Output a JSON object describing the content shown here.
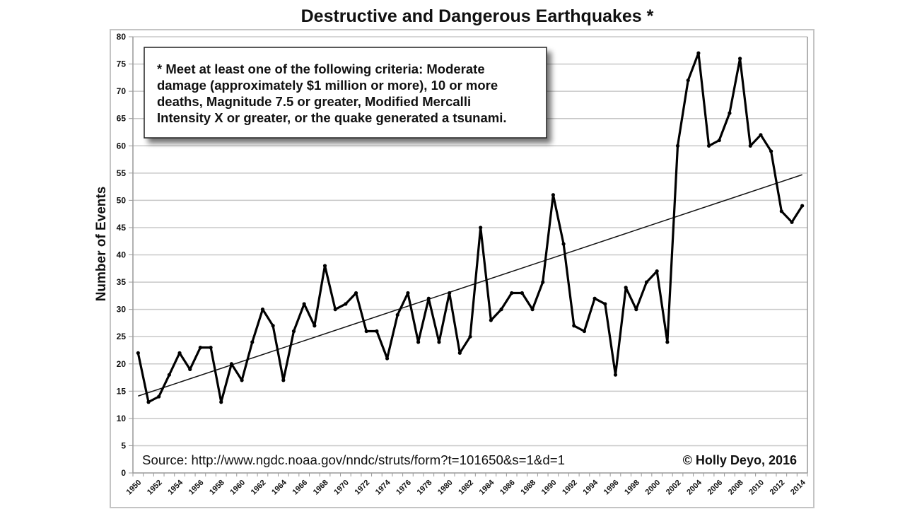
{
  "chart_data": {
    "type": "line",
    "title": "Destructive and Dangerous Earthquakes *",
    "xlabel": "",
    "ylabel": "Number of Events",
    "ylim": [
      0,
      80
    ],
    "yticks": [
      "0",
      "5",
      "10",
      "15",
      "20",
      "25",
      "30",
      "35",
      "40",
      "45",
      "50",
      "55",
      "60",
      "65",
      "70",
      "75",
      "80"
    ],
    "grid": true,
    "x": [
      1950,
      1951,
      1952,
      1953,
      1954,
      1955,
      1956,
      1957,
      1958,
      1959,
      1960,
      1961,
      1962,
      1963,
      1964,
      1965,
      1966,
      1967,
      1968,
      1969,
      1970,
      1971,
      1972,
      1973,
      1974,
      1975,
      1976,
      1977,
      1978,
      1979,
      1980,
      1981,
      1982,
      1983,
      1984,
      1985,
      1986,
      1987,
      1988,
      1989,
      1990,
      1991,
      1992,
      1993,
      1994,
      1995,
      1996,
      1997,
      1998,
      1999,
      2000,
      2001,
      2002,
      2003,
      2004,
      2005,
      2006,
      2007,
      2008,
      2009,
      2010,
      2011,
      2012,
      2013,
      2014
    ],
    "xticks": [
      "1950",
      "1952",
      "1954",
      "1956",
      "1958",
      "1960",
      "1962",
      "1964",
      "1966",
      "1968",
      "1970",
      "1972",
      "1974",
      "1976",
      "1978",
      "1980",
      "1982",
      "1984",
      "1986",
      "1988",
      "1990",
      "1992",
      "1994",
      "1996",
      "1998",
      "2000",
      "2002",
      "2004",
      "2006",
      "2008",
      "2010",
      "2012",
      "2014"
    ],
    "series": [
      {
        "name": "Events",
        "values": [
          22,
          13,
          14,
          18,
          22,
          19,
          23,
          23,
          13,
          20,
          17,
          24,
          30,
          27,
          17,
          26,
          31,
          27,
          38,
          30,
          31,
          33,
          26,
          26,
          21,
          29,
          33,
          24,
          32,
          24,
          33,
          22,
          25,
          45,
          28,
          30,
          33,
          33,
          30,
          35,
          51,
          42,
          27,
          26,
          32,
          31,
          18,
          34,
          30,
          35,
          37,
          24,
          60,
          72,
          77,
          60,
          61,
          66,
          76,
          60,
          62,
          59,
          48,
          46,
          49
        ]
      }
    ],
    "trendline": {
      "type": "linear",
      "start": [
        1950,
        14.1
      ],
      "end": [
        2014,
        54.7
      ]
    },
    "annotation": {
      "lines": [
        "* Meet at least one of the following criteria: Moderate",
        "damage (approximately $1 million or more), 10 or more",
        "deaths, Magnitude 7.5 or greater, Modified Mercalli",
        "Intensity X or greater, or the quake generated a tsunami."
      ]
    },
    "source": "Source: http://www.ngdc.noaa.gov/nndc/struts/form?t=101650&s=1&d=1",
    "credit": "© Holly Deyo, 2016",
    "colors": {
      "line": "#000000",
      "grid": "#c8c8c8",
      "frame": "#bdbdbd",
      "axis": "#999999"
    }
  }
}
